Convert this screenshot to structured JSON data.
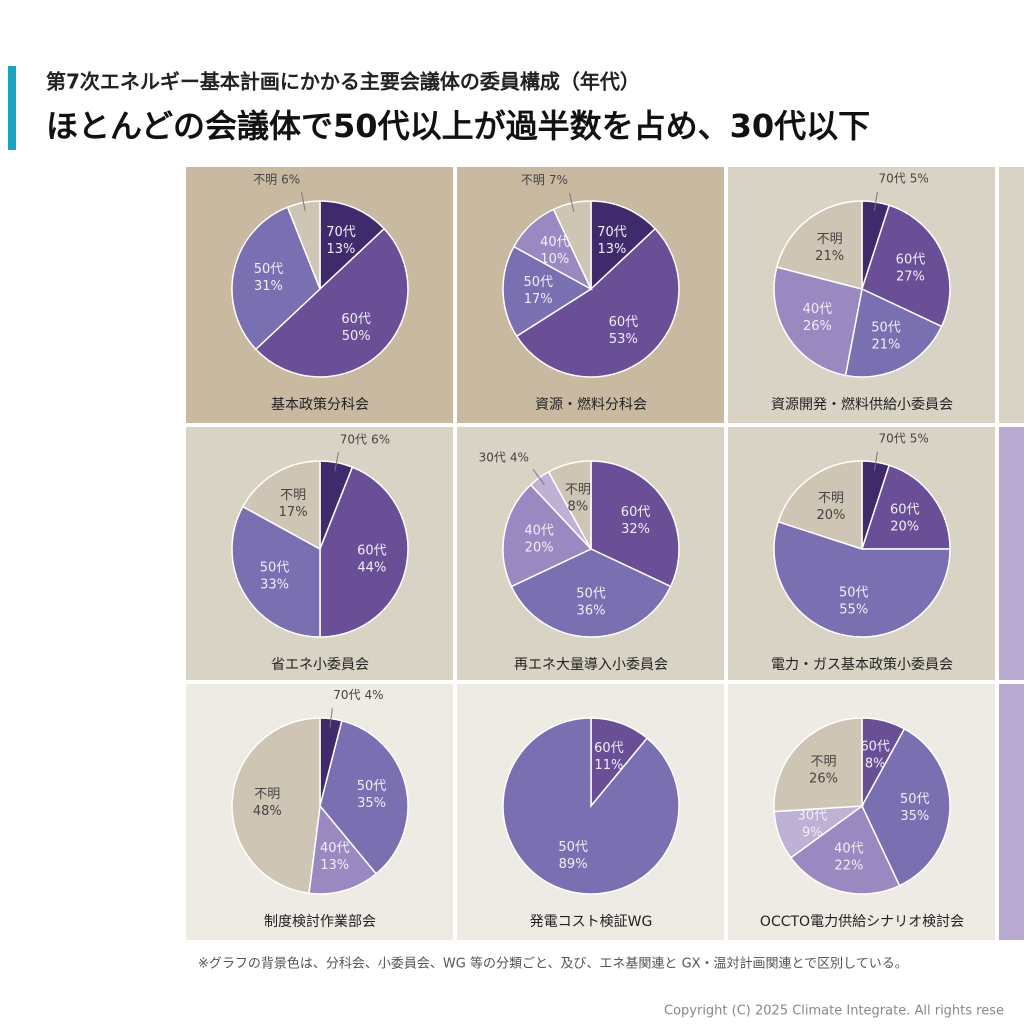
{
  "header": {
    "subtitle": "第7次エネルギー基本計画にかかる主要会議体の委員構成（年代）",
    "title": "ほとんどの会議体で50代以上が過半数を占め、30代以下"
  },
  "footnote": "※グラフの背景色は、分科会、小委員会、WG 等の分類ごと、及び、エネ基関連と GX・温対計画関連とで区別している。",
  "copyright": "Copyright (C) 2025 Climate Integrate. All rights rese",
  "chart_data": [
    {
      "type": "pie",
      "title": "基本政策分科会",
      "background": "#c9b9a1",
      "categories": [
        "70代",
        "60代",
        "50代",
        "不明"
      ],
      "values": [
        13,
        50,
        31,
        6
      ],
      "value_labels": [
        "13%",
        "50%",
        "31%",
        "6%"
      ],
      "colors": [
        "#3f2a6b",
        "#6a4f96",
        "#7a6fb0",
        "#cfc5b4"
      ]
    },
    {
      "type": "pie",
      "title": "資源・燃料分科会",
      "background": "#c9b9a1",
      "categories": [
        "70代",
        "60代",
        "50代",
        "40代",
        "不明"
      ],
      "values": [
        13,
        53,
        17,
        10,
        7
      ],
      "value_labels": [
        "13%",
        "53%",
        "17%",
        "10%",
        "7%"
      ],
      "colors": [
        "#3f2a6b",
        "#6a4f96",
        "#7a6fb0",
        "#9a88c0",
        "#cfc5b4"
      ]
    },
    {
      "type": "pie",
      "title": "資源開発・燃料供給小委員会",
      "background": "#d9d3c5",
      "categories": [
        "70代",
        "60代",
        "50代",
        "40代",
        "不明"
      ],
      "values": [
        5,
        27,
        21,
        26,
        21
      ],
      "value_labels": [
        "5%",
        "27%",
        "21%",
        "26%",
        "21%"
      ],
      "colors": [
        "#3f2a6b",
        "#6a4f96",
        "#7a6fb0",
        "#9a88c0",
        "#cfc5b4"
      ]
    },
    {
      "type": "pie",
      "title": "省エネ小委員会",
      "background": "#d9d3c5",
      "categories": [
        "70代",
        "60代",
        "50代",
        "不明"
      ],
      "values": [
        6,
        44,
        33,
        17
      ],
      "value_labels": [
        "6%",
        "44%",
        "33%",
        "17%"
      ],
      "colors": [
        "#3f2a6b",
        "#6a4f96",
        "#7a6fb0",
        "#cfc5b4"
      ]
    },
    {
      "type": "pie",
      "title": "再エネ大量導入小委員会",
      "background": "#d9d3c5",
      "categories": [
        "60代",
        "50代",
        "40代",
        "30代",
        "不明"
      ],
      "values": [
        32,
        36,
        20,
        4,
        8
      ],
      "value_labels": [
        "32%",
        "36%",
        "20%",
        "4%",
        "8%"
      ],
      "colors": [
        "#6a4f96",
        "#7a6fb0",
        "#9a88c0",
        "#bfb0d6",
        "#cfc5b4"
      ]
    },
    {
      "type": "pie",
      "title": "電力・ガス基本政策小委員会",
      "background": "#d9d3c5",
      "categories": [
        "70代",
        "60代",
        "50代",
        "不明"
      ],
      "values": [
        5,
        20,
        55,
        20
      ],
      "value_labels": [
        "5%",
        "20%",
        "55%",
        "20%"
      ],
      "colors": [
        "#3f2a6b",
        "#6a4f96",
        "#7a6fb0",
        "#cfc5b4"
      ]
    },
    {
      "type": "pie",
      "title": "制度検討作業部会",
      "background": "#eeeae4",
      "categories": [
        "70代",
        "50代",
        "40代",
        "不明"
      ],
      "values": [
        4,
        35,
        13,
        48
      ],
      "value_labels": [
        "4%",
        "35%",
        "13%",
        "48%"
      ],
      "colors": [
        "#3f2a6b",
        "#7a6fb0",
        "#9a88c0",
        "#cfc5b4"
      ]
    },
    {
      "type": "pie",
      "title": "発電コスト検証WG",
      "background": "#eeeae4",
      "categories": [
        "60代",
        "50代"
      ],
      "values": [
        11,
        89
      ],
      "value_labels": [
        "11%",
        "89%"
      ],
      "colors": [
        "#6a4f96",
        "#7a6fb0"
      ]
    },
    {
      "type": "pie",
      "title": "OCCTO電力供給シナリオ検討会",
      "background": "#eeeae4",
      "categories": [
        "60代",
        "50代",
        "40代",
        "30代",
        "不明"
      ],
      "values": [
        8,
        35,
        22,
        9,
        26
      ],
      "value_labels": [
        "8%",
        "35%",
        "22%",
        "9%",
        "26%"
      ],
      "colors": [
        "#6a4f96",
        "#7a6fb0",
        "#9a88c0",
        "#bfb0d6",
        "#cfc5b4"
      ]
    }
  ]
}
